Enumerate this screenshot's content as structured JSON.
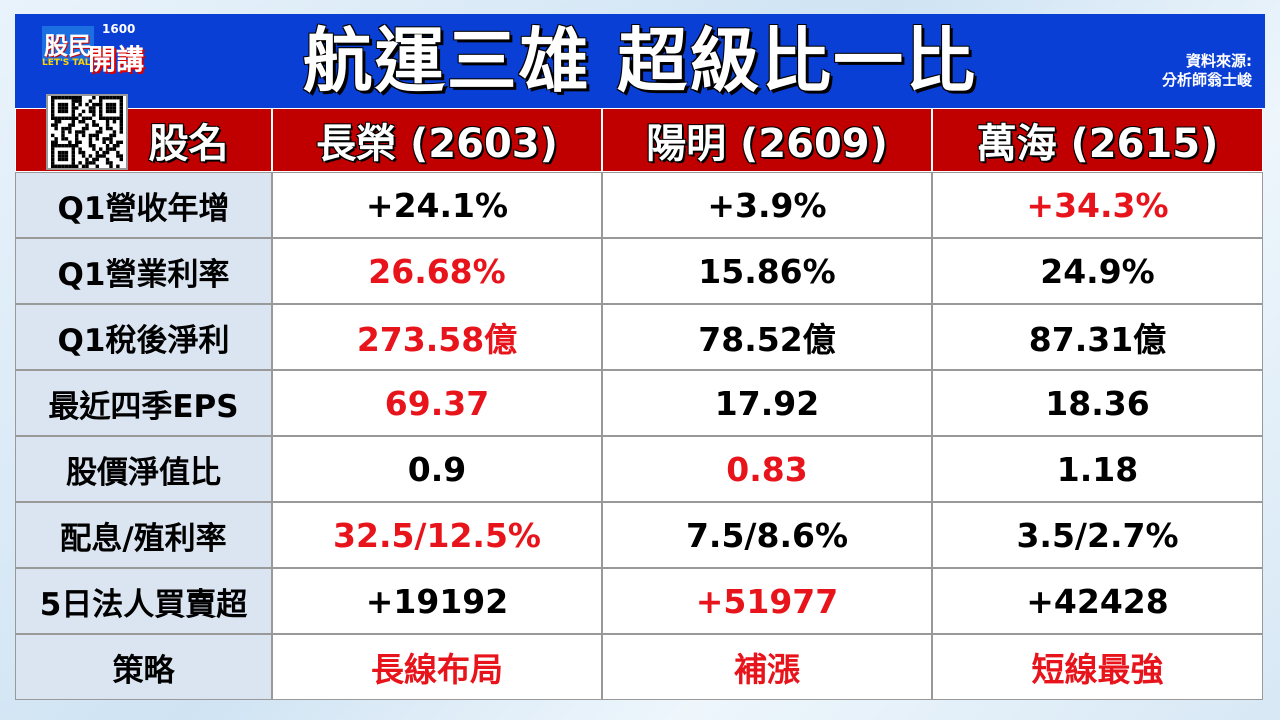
{
  "header": {
    "title": "航運三雄 超級比一比",
    "source_label": "資料來源:",
    "source": "分析師翁士峻",
    "logo": {
      "top": "股民",
      "number": "1600",
      "tag": "LET'S TALK",
      "bottom": "開講"
    }
  },
  "table": {
    "columns": [
      "股名",
      "長榮 (2603)",
      "陽明 (2609)",
      "萬海 (2615)"
    ],
    "rows": [
      {
        "label": "Q1營收年增",
        "values": [
          "+24.1%",
          "+3.9%",
          "+34.3%"
        ],
        "colors": [
          "#000000",
          "#000000",
          "#e8141b"
        ]
      },
      {
        "label": "Q1營業利率",
        "values": [
          "26.68%",
          "15.86%",
          "24.9%"
        ],
        "colors": [
          "#e8141b",
          "#000000",
          "#000000"
        ]
      },
      {
        "label": "Q1稅後淨利",
        "values": [
          "273.58億",
          "78.52億",
          "87.31億"
        ],
        "colors": [
          "#e8141b",
          "#000000",
          "#000000"
        ]
      },
      {
        "label": "最近四季EPS",
        "values": [
          "69.37",
          "17.92",
          "18.36"
        ],
        "colors": [
          "#e8141b",
          "#000000",
          "#000000"
        ]
      },
      {
        "label": "股價淨值比",
        "values": [
          "0.9",
          "0.83",
          "1.18"
        ],
        "colors": [
          "#000000",
          "#e8141b",
          "#000000"
        ]
      },
      {
        "label": "配息/殖利率",
        "values": [
          "32.5/12.5%",
          "7.5/8.6%",
          "3.5/2.7%"
        ],
        "colors": [
          "#e8141b",
          "#000000",
          "#000000"
        ]
      },
      {
        "label": "5日法人買賣超",
        "values": [
          "+19192",
          "+51977",
          "+42428"
        ],
        "colors": [
          "#000000",
          "#e8141b",
          "#000000"
        ]
      },
      {
        "label": "策略",
        "values": [
          "長線布局",
          "補漲",
          "短線最強"
        ],
        "colors": [
          "#e8141b",
          "#e8141b",
          "#e8141b"
        ]
      }
    ]
  }
}
